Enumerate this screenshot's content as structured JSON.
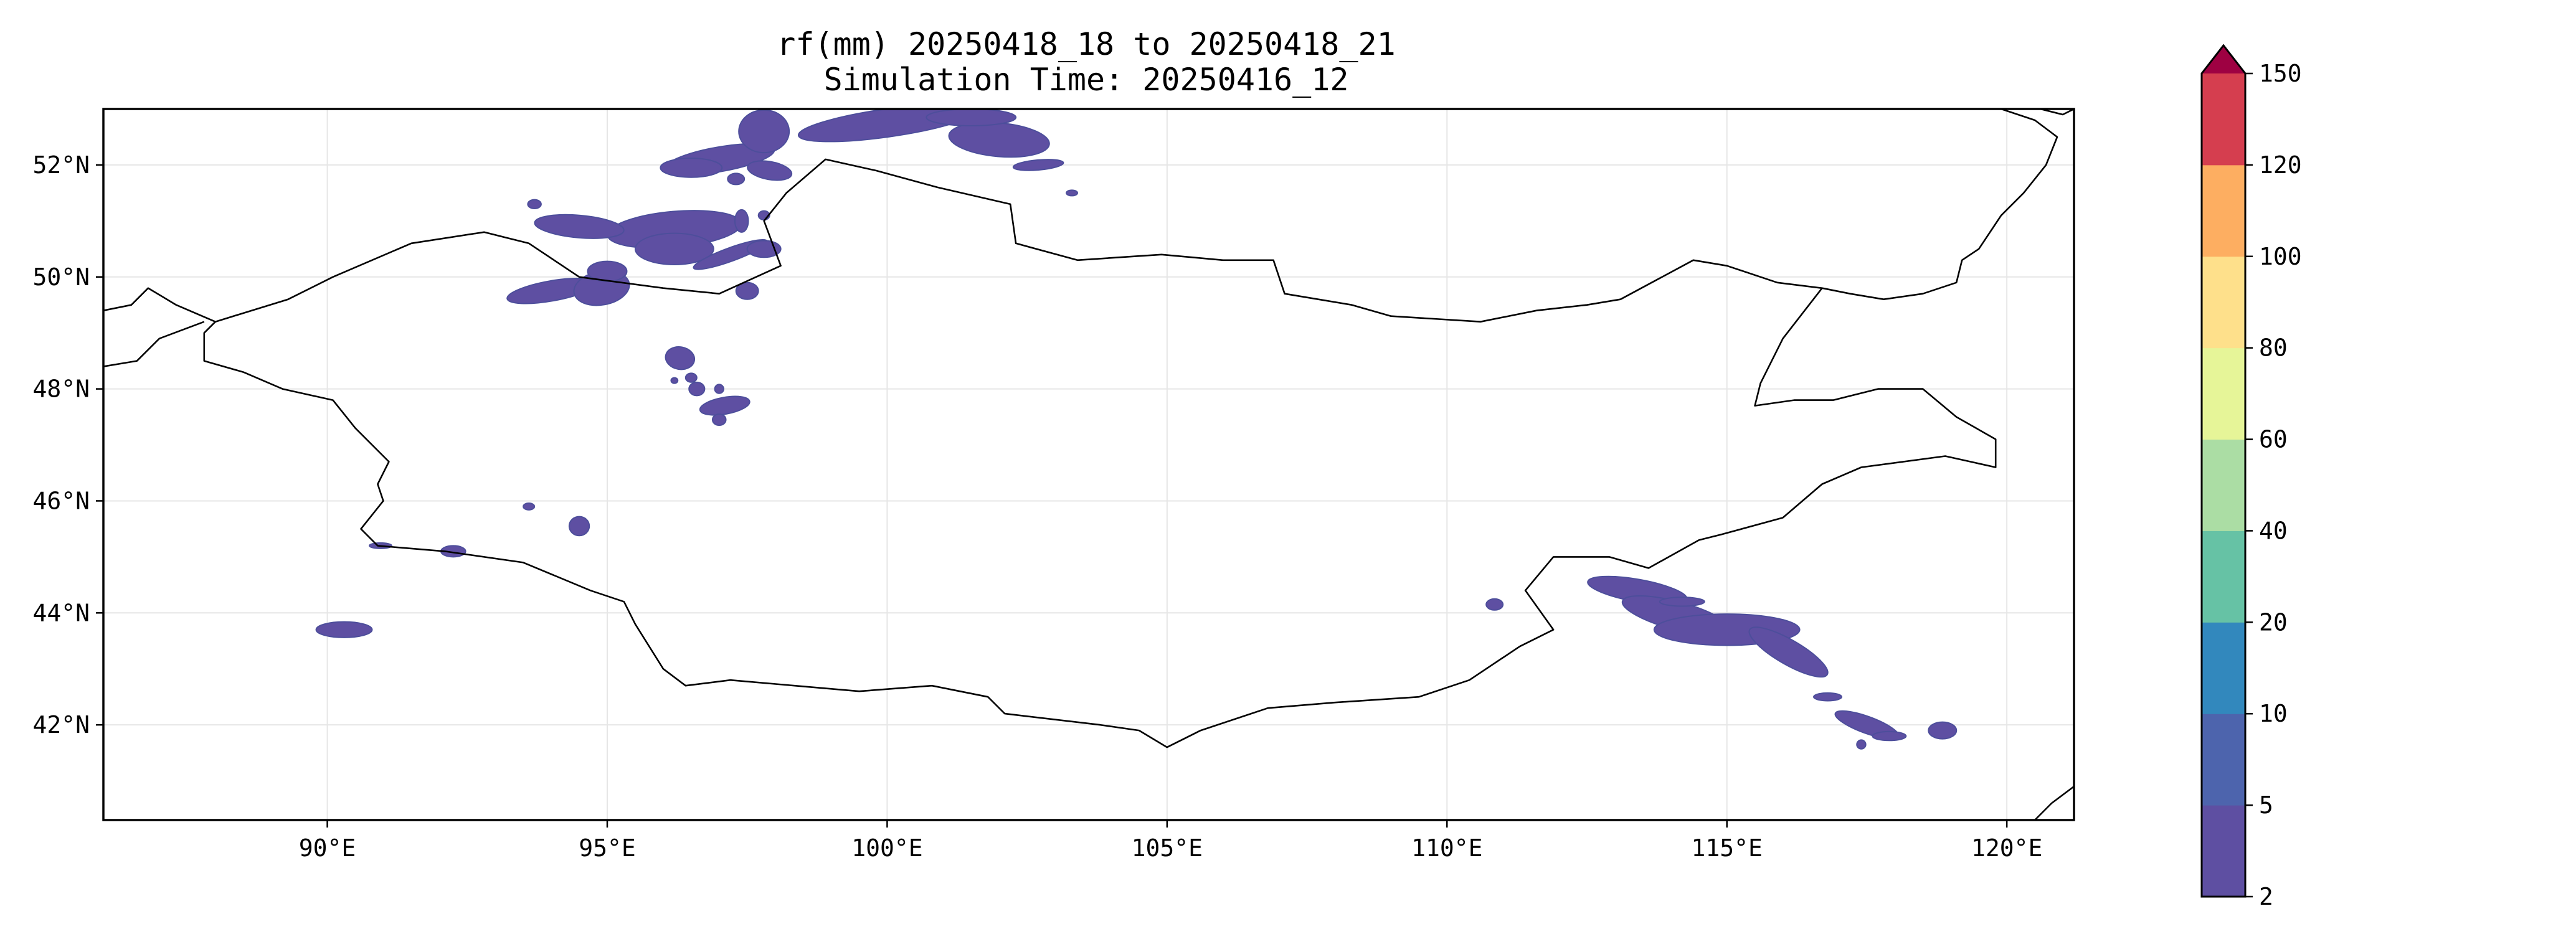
{
  "title": {
    "line1": "rf(mm) 20250418_18 to 20250418_21",
    "line2": "Simulation Time: 20250416_12"
  },
  "map": {
    "lon_range": [
      86,
      121.2
    ],
    "lat_range": [
      40.3,
      53.0
    ],
    "lon_ticks": [
      {
        "value": 90,
        "label": "90°E"
      },
      {
        "value": 95,
        "label": "95°E"
      },
      {
        "value": 100,
        "label": "100°E"
      },
      {
        "value": 105,
        "label": "105°E"
      },
      {
        "value": 110,
        "label": "110°E"
      },
      {
        "value": 115,
        "label": "115°E"
      },
      {
        "value": 120,
        "label": "120°E"
      }
    ],
    "lat_ticks": [
      {
        "value": 52,
        "label": "52°N"
      },
      {
        "value": 50,
        "label": "50°N"
      },
      {
        "value": 48,
        "label": "48°N"
      },
      {
        "value": 46,
        "label": "46°N"
      },
      {
        "value": 44,
        "label": "44°N"
      },
      {
        "value": 42,
        "label": "42°N"
      }
    ],
    "gridlines": true,
    "rain_color": "#5e4fa2",
    "borders": [
      [
        [
          88.0,
          49.2
        ],
        [
          89.3,
          49.6
        ],
        [
          90.1,
          50.0
        ],
        [
          91.5,
          50.6
        ],
        [
          92.8,
          50.8
        ],
        [
          93.6,
          50.6
        ],
        [
          94.5,
          50.0
        ],
        [
          96.0,
          49.8
        ],
        [
          97.0,
          49.7
        ],
        [
          98.1,
          50.2
        ],
        [
          97.8,
          51.0
        ],
        [
          98.2,
          51.5
        ],
        [
          98.9,
          52.1
        ],
        [
          99.8,
          51.9
        ],
        [
          100.9,
          51.6
        ],
        [
          102.2,
          51.3
        ],
        [
          102.3,
          50.6
        ],
        [
          103.4,
          50.3
        ],
        [
          104.9,
          50.4
        ],
        [
          106.0,
          50.3
        ],
        [
          106.9,
          50.3
        ],
        [
          107.1,
          49.7
        ],
        [
          108.3,
          49.5
        ],
        [
          109.0,
          49.3
        ],
        [
          110.6,
          49.2
        ],
        [
          111.6,
          49.4
        ],
        [
          112.5,
          49.5
        ],
        [
          113.1,
          49.6
        ],
        [
          114.4,
          50.3
        ],
        [
          115.0,
          50.2
        ],
        [
          115.9,
          49.9
        ],
        [
          116.7,
          49.8
        ]
      ],
      [
        [
          116.7,
          49.8
        ],
        [
          116.0,
          48.9
        ],
        [
          115.6,
          48.1
        ],
        [
          115.5,
          47.7
        ],
        [
          116.2,
          47.8
        ],
        [
          116.9,
          47.8
        ],
        [
          117.7,
          48.0
        ],
        [
          118.5,
          48.0
        ],
        [
          119.1,
          47.5
        ],
        [
          119.8,
          47.1
        ],
        [
          119.8,
          46.6
        ],
        [
          118.9,
          46.8
        ],
        [
          117.4,
          46.6
        ],
        [
          116.7,
          46.3
        ],
        [
          116.0,
          45.7
        ],
        [
          114.9,
          45.4
        ],
        [
          114.5,
          45.3
        ],
        [
          113.6,
          44.8
        ],
        [
          112.9,
          45.0
        ],
        [
          111.9,
          45.0
        ],
        [
          111.4,
          44.4
        ],
        [
          111.9,
          43.7
        ],
        [
          111.3,
          43.4
        ],
        [
          110.4,
          42.8
        ],
        [
          109.5,
          42.5
        ],
        [
          108.0,
          42.4
        ],
        [
          106.8,
          42.3
        ],
        [
          105.6,
          41.9
        ],
        [
          105.0,
          41.6
        ],
        [
          104.5,
          41.9
        ],
        [
          103.8,
          42.0
        ],
        [
          102.1,
          42.2
        ],
        [
          101.8,
          42.5
        ],
        [
          100.8,
          42.7
        ],
        [
          99.5,
          42.6
        ],
        [
          97.2,
          42.8
        ],
        [
          96.4,
          42.7
        ],
        [
          96.0,
          43.0
        ],
        [
          95.5,
          43.8
        ],
        [
          95.3,
          44.2
        ],
        [
          94.7,
          44.4
        ],
        [
          93.5,
          44.9
        ],
        [
          92.1,
          45.1
        ],
        [
          90.9,
          45.2
        ],
        [
          90.6,
          45.5
        ],
        [
          91.0,
          46.0
        ],
        [
          90.9,
          46.3
        ],
        [
          91.1,
          46.7
        ],
        [
          90.5,
          47.3
        ],
        [
          90.1,
          47.8
        ],
        [
          89.2,
          48.0
        ],
        [
          88.5,
          48.3
        ],
        [
          87.8,
          48.5
        ],
        [
          87.8,
          49.0
        ],
        [
          88.0,
          49.2
        ]
      ],
      [
        [
          86.0,
          49.4
        ],
        [
          86.5,
          49.5
        ],
        [
          86.8,
          49.8
        ],
        [
          87.3,
          49.5
        ],
        [
          88.0,
          49.2
        ]
      ],
      [
        [
          86.0,
          48.4
        ],
        [
          86.6,
          48.5
        ],
        [
          87.0,
          48.9
        ],
        [
          87.8,
          49.2
        ]
      ],
      [
        [
          119.9,
          53.0
        ],
        [
          120.5,
          52.8
        ],
        [
          120.9,
          52.5
        ],
        [
          120.7,
          52.0
        ],
        [
          120.3,
          51.5
        ],
        [
          119.9,
          51.1
        ],
        [
          119.5,
          50.5
        ],
        [
          119.2,
          50.3
        ],
        [
          119.1,
          49.9
        ],
        [
          118.5,
          49.7
        ],
        [
          117.8,
          49.6
        ],
        [
          117.2,
          49.7
        ],
        [
          116.7,
          49.8
        ]
      ],
      [
        [
          121.2,
          40.9
        ],
        [
          120.8,
          40.6
        ],
        [
          120.5,
          40.3
        ]
      ],
      [
        [
          121.2,
          53.0
        ],
        [
          121.0,
          52.9
        ],
        [
          120.6,
          53.0
        ]
      ]
    ],
    "rain_areas": [
      {
        "lon": 96.2,
        "lat": 50.85,
        "rx": 1.2,
        "ry": 0.32,
        "rot": -5
      },
      {
        "lon": 94.5,
        "lat": 50.9,
        "rx": 0.8,
        "ry": 0.2,
        "rot": 5
      },
      {
        "lon": 96.2,
        "lat": 50.5,
        "rx": 0.7,
        "ry": 0.28,
        "rot": 0
      },
      {
        "lon": 93.7,
        "lat": 51.3,
        "rx": 0.12,
        "ry": 0.08,
        "rot": 0
      },
      {
        "lon": 97.2,
        "lat": 50.4,
        "rx": 0.7,
        "ry": 0.12,
        "rot": -20
      },
      {
        "lon": 97.8,
        "lat": 50.5,
        "rx": 0.3,
        "ry": 0.15,
        "rot": 0
      },
      {
        "lon": 97.4,
        "lat": 51.0,
        "rx": 0.12,
        "ry": 0.2,
        "rot": 0
      },
      {
        "lon": 94.0,
        "lat": 49.75,
        "rx": 0.8,
        "ry": 0.18,
        "rot": -10
      },
      {
        "lon": 94.9,
        "lat": 49.8,
        "rx": 0.5,
        "ry": 0.3,
        "rot": -10
      },
      {
        "lon": 95.0,
        "lat": 50.1,
        "rx": 0.35,
        "ry": 0.18,
        "rot": 0
      },
      {
        "lon": 97.5,
        "lat": 49.75,
        "rx": 0.2,
        "ry": 0.15,
        "rot": 0
      },
      {
        "lon": 97.8,
        "lat": 51.1,
        "rx": 0.1,
        "ry": 0.08,
        "rot": 0
      },
      {
        "lon": 97.0,
        "lat": 52.1,
        "rx": 1.0,
        "ry": 0.22,
        "rot": -10
      },
      {
        "lon": 96.5,
        "lat": 51.95,
        "rx": 0.55,
        "ry": 0.17,
        "rot": 0
      },
      {
        "lon": 97.8,
        "lat": 52.6,
        "rx": 0.45,
        "ry": 0.38,
        "rot": 0
      },
      {
        "lon": 97.9,
        "lat": 51.9,
        "rx": 0.4,
        "ry": 0.16,
        "rot": 10
      },
      {
        "lon": 97.3,
        "lat": 51.75,
        "rx": 0.15,
        "ry": 0.1,
        "rot": 0
      },
      {
        "lon": 100.0,
        "lat": 52.75,
        "rx": 1.6,
        "ry": 0.25,
        "rot": -8
      },
      {
        "lon": 102.0,
        "lat": 52.45,
        "rx": 0.9,
        "ry": 0.3,
        "rot": 5
      },
      {
        "lon": 101.5,
        "lat": 52.85,
        "rx": 0.8,
        "ry": 0.15,
        "rot": 0
      },
      {
        "lon": 102.7,
        "lat": 52.0,
        "rx": 0.45,
        "ry": 0.09,
        "rot": -5
      },
      {
        "lon": 103.3,
        "lat": 51.5,
        "rx": 0.1,
        "ry": 0.05,
        "rot": 0
      },
      {
        "lon": 96.3,
        "lat": 48.55,
        "rx": 0.26,
        "ry": 0.2,
        "rot": 10
      },
      {
        "lon": 96.5,
        "lat": 48.2,
        "rx": 0.1,
        "ry": 0.08,
        "rot": 0
      },
      {
        "lon": 96.6,
        "lat": 48.0,
        "rx": 0.14,
        "ry": 0.12,
        "rot": 0
      },
      {
        "lon": 96.2,
        "lat": 48.15,
        "rx": 0.06,
        "ry": 0.05,
        "rot": 0
      },
      {
        "lon": 97.1,
        "lat": 47.7,
        "rx": 0.45,
        "ry": 0.15,
        "rot": -10
      },
      {
        "lon": 97.0,
        "lat": 47.45,
        "rx": 0.12,
        "ry": 0.1,
        "rot": 0
      },
      {
        "lon": 97.0,
        "lat": 48.0,
        "rx": 0.08,
        "ry": 0.08,
        "rot": 0
      },
      {
        "lon": 94.5,
        "lat": 45.55,
        "rx": 0.18,
        "ry": 0.17,
        "rot": 0
      },
      {
        "lon": 93.6,
        "lat": 45.9,
        "rx": 0.1,
        "ry": 0.06,
        "rot": 0
      },
      {
        "lon": 92.25,
        "lat": 45.1,
        "rx": 0.22,
        "ry": 0.1,
        "rot": 0
      },
      {
        "lon": 90.95,
        "lat": 45.2,
        "rx": 0.2,
        "ry": 0.05,
        "rot": 0
      },
      {
        "lon": 90.3,
        "lat": 43.7,
        "rx": 0.5,
        "ry": 0.14,
        "rot": 0
      },
      {
        "lon": 110.85,
        "lat": 44.15,
        "rx": 0.15,
        "ry": 0.1,
        "rot": 0
      },
      {
        "lon": 113.4,
        "lat": 44.4,
        "rx": 0.9,
        "ry": 0.2,
        "rot": 10
      },
      {
        "lon": 114.1,
        "lat": 43.95,
        "rx": 1.0,
        "ry": 0.25,
        "rot": 15
      },
      {
        "lon": 115.0,
        "lat": 43.7,
        "rx": 1.3,
        "ry": 0.28,
        "rot": 0
      },
      {
        "lon": 116.1,
        "lat": 43.3,
        "rx": 0.8,
        "ry": 0.22,
        "rot": 30
      },
      {
        "lon": 114.2,
        "lat": 44.2,
        "rx": 0.4,
        "ry": 0.08,
        "rot": 0
      },
      {
        "lon": 116.8,
        "lat": 42.5,
        "rx": 0.25,
        "ry": 0.07,
        "rot": 0
      },
      {
        "lon": 117.5,
        "lat": 42.0,
        "rx": 0.6,
        "ry": 0.15,
        "rot": 20
      },
      {
        "lon": 117.9,
        "lat": 41.8,
        "rx": 0.3,
        "ry": 0.08,
        "rot": 0
      },
      {
        "lon": 117.4,
        "lat": 41.65,
        "rx": 0.08,
        "ry": 0.08,
        "rot": 0
      },
      {
        "lon": 118.85,
        "lat": 41.9,
        "rx": 0.25,
        "ry": 0.15,
        "rot": 0
      }
    ]
  },
  "colorbar": {
    "colors": [
      "#5e4fa2",
      "#4d64ad",
      "#3288bd",
      "#66c2a5",
      "#abdda4",
      "#e6f598",
      "#fee08b",
      "#fdae61",
      "#d53e4f",
      "#9e0142"
    ],
    "labels": [
      "2",
      "5",
      "10",
      "20",
      "40",
      "60",
      "80",
      "100",
      "120",
      "150"
    ],
    "extend": "max"
  }
}
